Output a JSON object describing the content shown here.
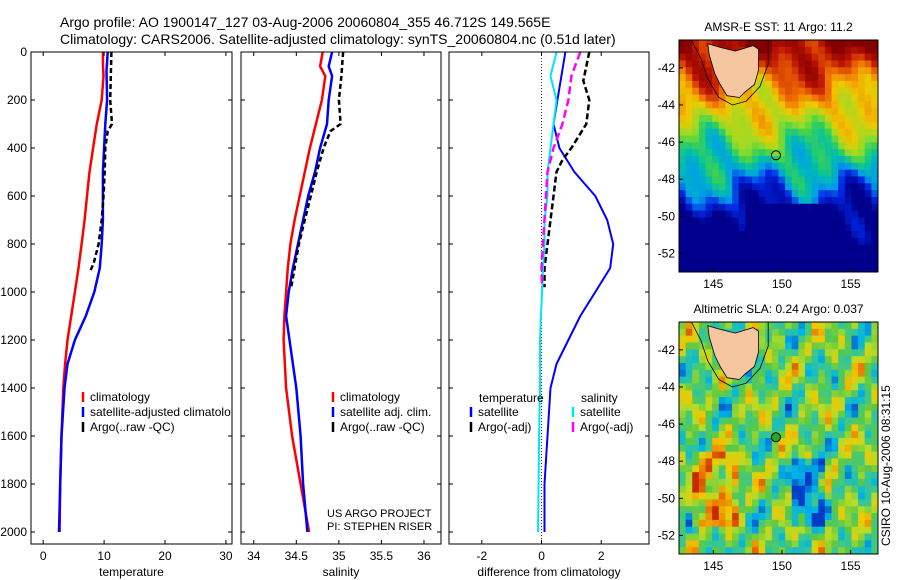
{
  "header": {
    "line1": "Argo profile: AO 1900147_127 03-Aug-2006 20060804_355 46.712S 149.565E",
    "line2": "Climatology: CARS2006. Satellite-adjusted climatology: synTS_20060804.nc (0.51d later)"
  },
  "side_text": "CSIRO 10-Aug-2006 08:31:15",
  "credit": {
    "line1": "US ARGO PROJECT",
    "line2": "PI: STEPHEN RISER"
  },
  "colors": {
    "red": "#ff0000",
    "blue": "#0000ff",
    "black": "#000000",
    "cyan": "#00e5ff",
    "magenta": "#ff00ff",
    "land": "#f5c6a0"
  },
  "chart_data": [
    {
      "type": "line",
      "xlabel": "temperature",
      "xlim": [
        -2,
        31
      ],
      "ylim": [
        2050,
        0
      ],
      "xticks": [
        0,
        10,
        20,
        30
      ],
      "yticks": [
        0,
        200,
        400,
        600,
        800,
        1000,
        1200,
        1400,
        1600,
        1800,
        2000
      ],
      "legend": [
        "climatology",
        "satellite-adjusted climatolo",
        "Argo(..raw -QC)"
      ],
      "series": [
        {
          "name": "climatology",
          "color": "red",
          "dash": "",
          "width": 2.5,
          "points": [
            [
              9.8,
              0
            ],
            [
              9.8,
              50
            ],
            [
              9.9,
              100
            ],
            [
              9.6,
              200
            ],
            [
              8.8,
              300
            ],
            [
              8.2,
              400
            ],
            [
              7.6,
              500
            ],
            [
              7.2,
              600
            ],
            [
              6.8,
              700
            ],
            [
              6.3,
              800
            ],
            [
              5.8,
              900
            ],
            [
              5.2,
              1000
            ],
            [
              4.6,
              1100
            ],
            [
              4.0,
              1200
            ],
            [
              3.6,
              1300
            ],
            [
              3.3,
              1400
            ],
            [
              3.0,
              1600
            ],
            [
              2.8,
              1800
            ],
            [
              2.7,
              2000
            ]
          ]
        },
        {
          "name": "satellite-adjusted climatolo",
          "color": "blue",
          "dash": "",
          "width": 2.5,
          "points": [
            [
              10.6,
              0
            ],
            [
              10.4,
              80
            ],
            [
              10.5,
              200
            ],
            [
              10.2,
              300
            ],
            [
              10.0,
              400
            ],
            [
              9.8,
              500
            ],
            [
              9.8,
              600
            ],
            [
              9.8,
              700
            ],
            [
              9.6,
              800
            ],
            [
              9.3,
              900
            ],
            [
              8.4,
              1000
            ],
            [
              7.0,
              1100
            ],
            [
              5.2,
              1200
            ],
            [
              4.0,
              1300
            ],
            [
              3.5,
              1400
            ],
            [
              3.0,
              1600
            ],
            [
              2.8,
              1800
            ],
            [
              2.6,
              2000
            ]
          ]
        },
        {
          "name": "Argo(..raw -QC)",
          "color": "black",
          "dash": "5,3",
          "width": 2.5,
          "points": [
            [
              11.2,
              0
            ],
            [
              11.1,
              100
            ],
            [
              11.0,
              200
            ],
            [
              11.3,
              300
            ],
            [
              10.6,
              330
            ],
            [
              10.2,
              400
            ],
            [
              10.1,
              500
            ],
            [
              9.9,
              600
            ],
            [
              9.6,
              700
            ],
            [
              9.1,
              800
            ],
            [
              8.3,
              880
            ],
            [
              7.6,
              920
            ]
          ]
        }
      ]
    },
    {
      "type": "line",
      "xlabel": "salinity",
      "xlim": [
        33.85,
        36.2
      ],
      "ylim": [
        2050,
        0
      ],
      "xticks": [
        34,
        34.5,
        35,
        35.5,
        36
      ],
      "yticks": [
        0,
        200,
        400,
        600,
        800,
        1000,
        1200,
        1400,
        1600,
        1800,
        2000
      ],
      "legend": [
        "climatology",
        "satellite adj. clim.",
        "Argo(..raw -QC)"
      ],
      "series": [
        {
          "name": "climatology",
          "color": "red",
          "dash": "",
          "width": 2.5,
          "points": [
            [
              34.81,
              0
            ],
            [
              34.78,
              60
            ],
            [
              34.84,
              100
            ],
            [
              34.8,
              200
            ],
            [
              34.73,
              300
            ],
            [
              34.66,
              400
            ],
            [
              34.6,
              500
            ],
            [
              34.54,
              600
            ],
            [
              34.48,
              700
            ],
            [
              34.43,
              800
            ],
            [
              34.4,
              900
            ],
            [
              34.38,
              1000
            ],
            [
              34.36,
              1100
            ],
            [
              34.35,
              1200
            ],
            [
              34.38,
              1400
            ],
            [
              34.45,
              1600
            ],
            [
              34.55,
              1800
            ],
            [
              34.65,
              2000
            ]
          ]
        },
        {
          "name": "satellite adj. clim.",
          "color": "blue",
          "dash": "",
          "width": 2.5,
          "points": [
            [
              34.92,
              0
            ],
            [
              34.88,
              60
            ],
            [
              34.92,
              100
            ],
            [
              34.88,
              200
            ],
            [
              34.86,
              300
            ],
            [
              34.78,
              400
            ],
            [
              34.72,
              500
            ],
            [
              34.64,
              600
            ],
            [
              34.58,
              700
            ],
            [
              34.52,
              800
            ],
            [
              34.46,
              900
            ],
            [
              34.41,
              1000
            ],
            [
              34.38,
              1100
            ],
            [
              34.42,
              1200
            ],
            [
              34.5,
              1400
            ],
            [
              34.55,
              1600
            ],
            [
              34.58,
              1800
            ],
            [
              34.63,
              2000
            ]
          ]
        },
        {
          "name": "Argo(..raw -QC)",
          "color": "black",
          "dash": "5,3",
          "width": 2.5,
          "points": [
            [
              35.05,
              0
            ],
            [
              35.03,
              100
            ],
            [
              35.0,
              200
            ],
            [
              35.02,
              300
            ],
            [
              34.9,
              330
            ],
            [
              34.82,
              400
            ],
            [
              34.74,
              500
            ],
            [
              34.67,
              600
            ],
            [
              34.6,
              700
            ],
            [
              34.53,
              800
            ],
            [
              34.48,
              900
            ],
            [
              34.44,
              980
            ]
          ]
        }
      ]
    },
    {
      "type": "line",
      "xlabel": "difference from climatology",
      "xlim": [
        -3.1,
        3.6
      ],
      "ylim": [
        2050,
        0
      ],
      "xticks": [
        -2,
        0,
        2
      ],
      "yticks": [
        0,
        200,
        400,
        600,
        800,
        1000,
        1200,
        1400,
        1600,
        1800,
        2000
      ],
      "legend_columns": [
        {
          "heading": "temperature",
          "items": [
            "satellite",
            "Argo(-adj)"
          ]
        },
        {
          "heading": "salinity",
          "items": [
            "satellite",
            "Argo(-adj)"
          ]
        }
      ],
      "series": [
        {
          "name": "temperature satellite",
          "color": "blue",
          "dash": "",
          "width": 2,
          "points": [
            [
              0.8,
              0
            ],
            [
              0.6,
              150
            ],
            [
              0.4,
              300
            ],
            [
              0.6,
              400
            ],
            [
              1.1,
              500
            ],
            [
              1.8,
              600
            ],
            [
              2.2,
              700
            ],
            [
              2.4,
              800
            ],
            [
              2.3,
              900
            ],
            [
              1.8,
              1000
            ],
            [
              1.3,
              1100
            ],
            [
              0.9,
              1200
            ],
            [
              0.5,
              1300
            ],
            [
              0.3,
              1400
            ],
            [
              0.2,
              1600
            ],
            [
              0.1,
              1800
            ],
            [
              0.1,
              2000
            ]
          ]
        },
        {
          "name": "temperature Argo(-adj)",
          "color": "black",
          "dash": "6,3",
          "width": 2.5,
          "points": [
            [
              1.6,
              0
            ],
            [
              1.4,
              120
            ],
            [
              1.6,
              200
            ],
            [
              1.5,
              300
            ],
            [
              1.0,
              400
            ],
            [
              0.7,
              450
            ],
            [
              0.5,
              500
            ],
            [
              0.4,
              600
            ],
            [
              0.3,
              700
            ],
            [
              0.2,
              800
            ],
            [
              0.1,
              900
            ],
            [
              0.1,
              980
            ]
          ]
        },
        {
          "name": "salinity satellite",
          "color": "cyan",
          "dash": "",
          "width": 2,
          "points": [
            [
              0.5,
              0
            ],
            [
              0.3,
              100
            ],
            [
              0.5,
              200
            ],
            [
              0.4,
              300
            ],
            [
              0.3,
              400
            ],
            [
              0.2,
              500
            ],
            [
              0.2,
              600
            ],
            [
              0.1,
              700
            ],
            [
              0.1,
              800
            ],
            [
              0.05,
              900
            ],
            [
              0.02,
              1000
            ],
            [
              -0.02,
              1100
            ],
            [
              -0.05,
              1200
            ],
            [
              -0.05,
              1400
            ],
            [
              -0.08,
              1600
            ],
            [
              -0.1,
              1800
            ],
            [
              -0.12,
              2000
            ]
          ]
        },
        {
          "name": "salinity Argo(-adj)",
          "color": "magenta",
          "dash": "8,4",
          "width": 2.5,
          "points": [
            [
              1.3,
              0
            ],
            [
              1.0,
              100
            ],
            [
              0.9,
              200
            ],
            [
              0.7,
              300
            ],
            [
              0.4,
              400
            ],
            [
              0.2,
              500
            ],
            [
              0.15,
              600
            ],
            [
              0.1,
              700
            ],
            [
              0.05,
              800
            ],
            [
              0.0,
              900
            ],
            [
              0.02,
              980
            ]
          ]
        }
      ]
    }
  ],
  "maps": [
    {
      "title": "AMSR-E SST: 11 Argo: 11.2",
      "xlim": [
        142.5,
        157
      ],
      "ylim": [
        -53,
        -40.5
      ],
      "xticks": [
        145,
        150,
        155
      ],
      "yticks": [
        -42,
        -44,
        -46,
        -48,
        -50,
        -52
      ],
      "marker": {
        "lon": 149.565,
        "lat": -46.712
      }
    },
    {
      "title": "Altimetric SLA: 0.24 Argo: 0.037",
      "xlim": [
        142.5,
        157
      ],
      "ylim": [
        -53,
        -40.5
      ],
      "xticks": [
        145,
        150,
        155
      ],
      "yticks": [
        -42,
        -44,
        -46,
        -48,
        -50,
        -52
      ],
      "marker": {
        "lon": 149.565,
        "lat": -46.712
      }
    }
  ]
}
